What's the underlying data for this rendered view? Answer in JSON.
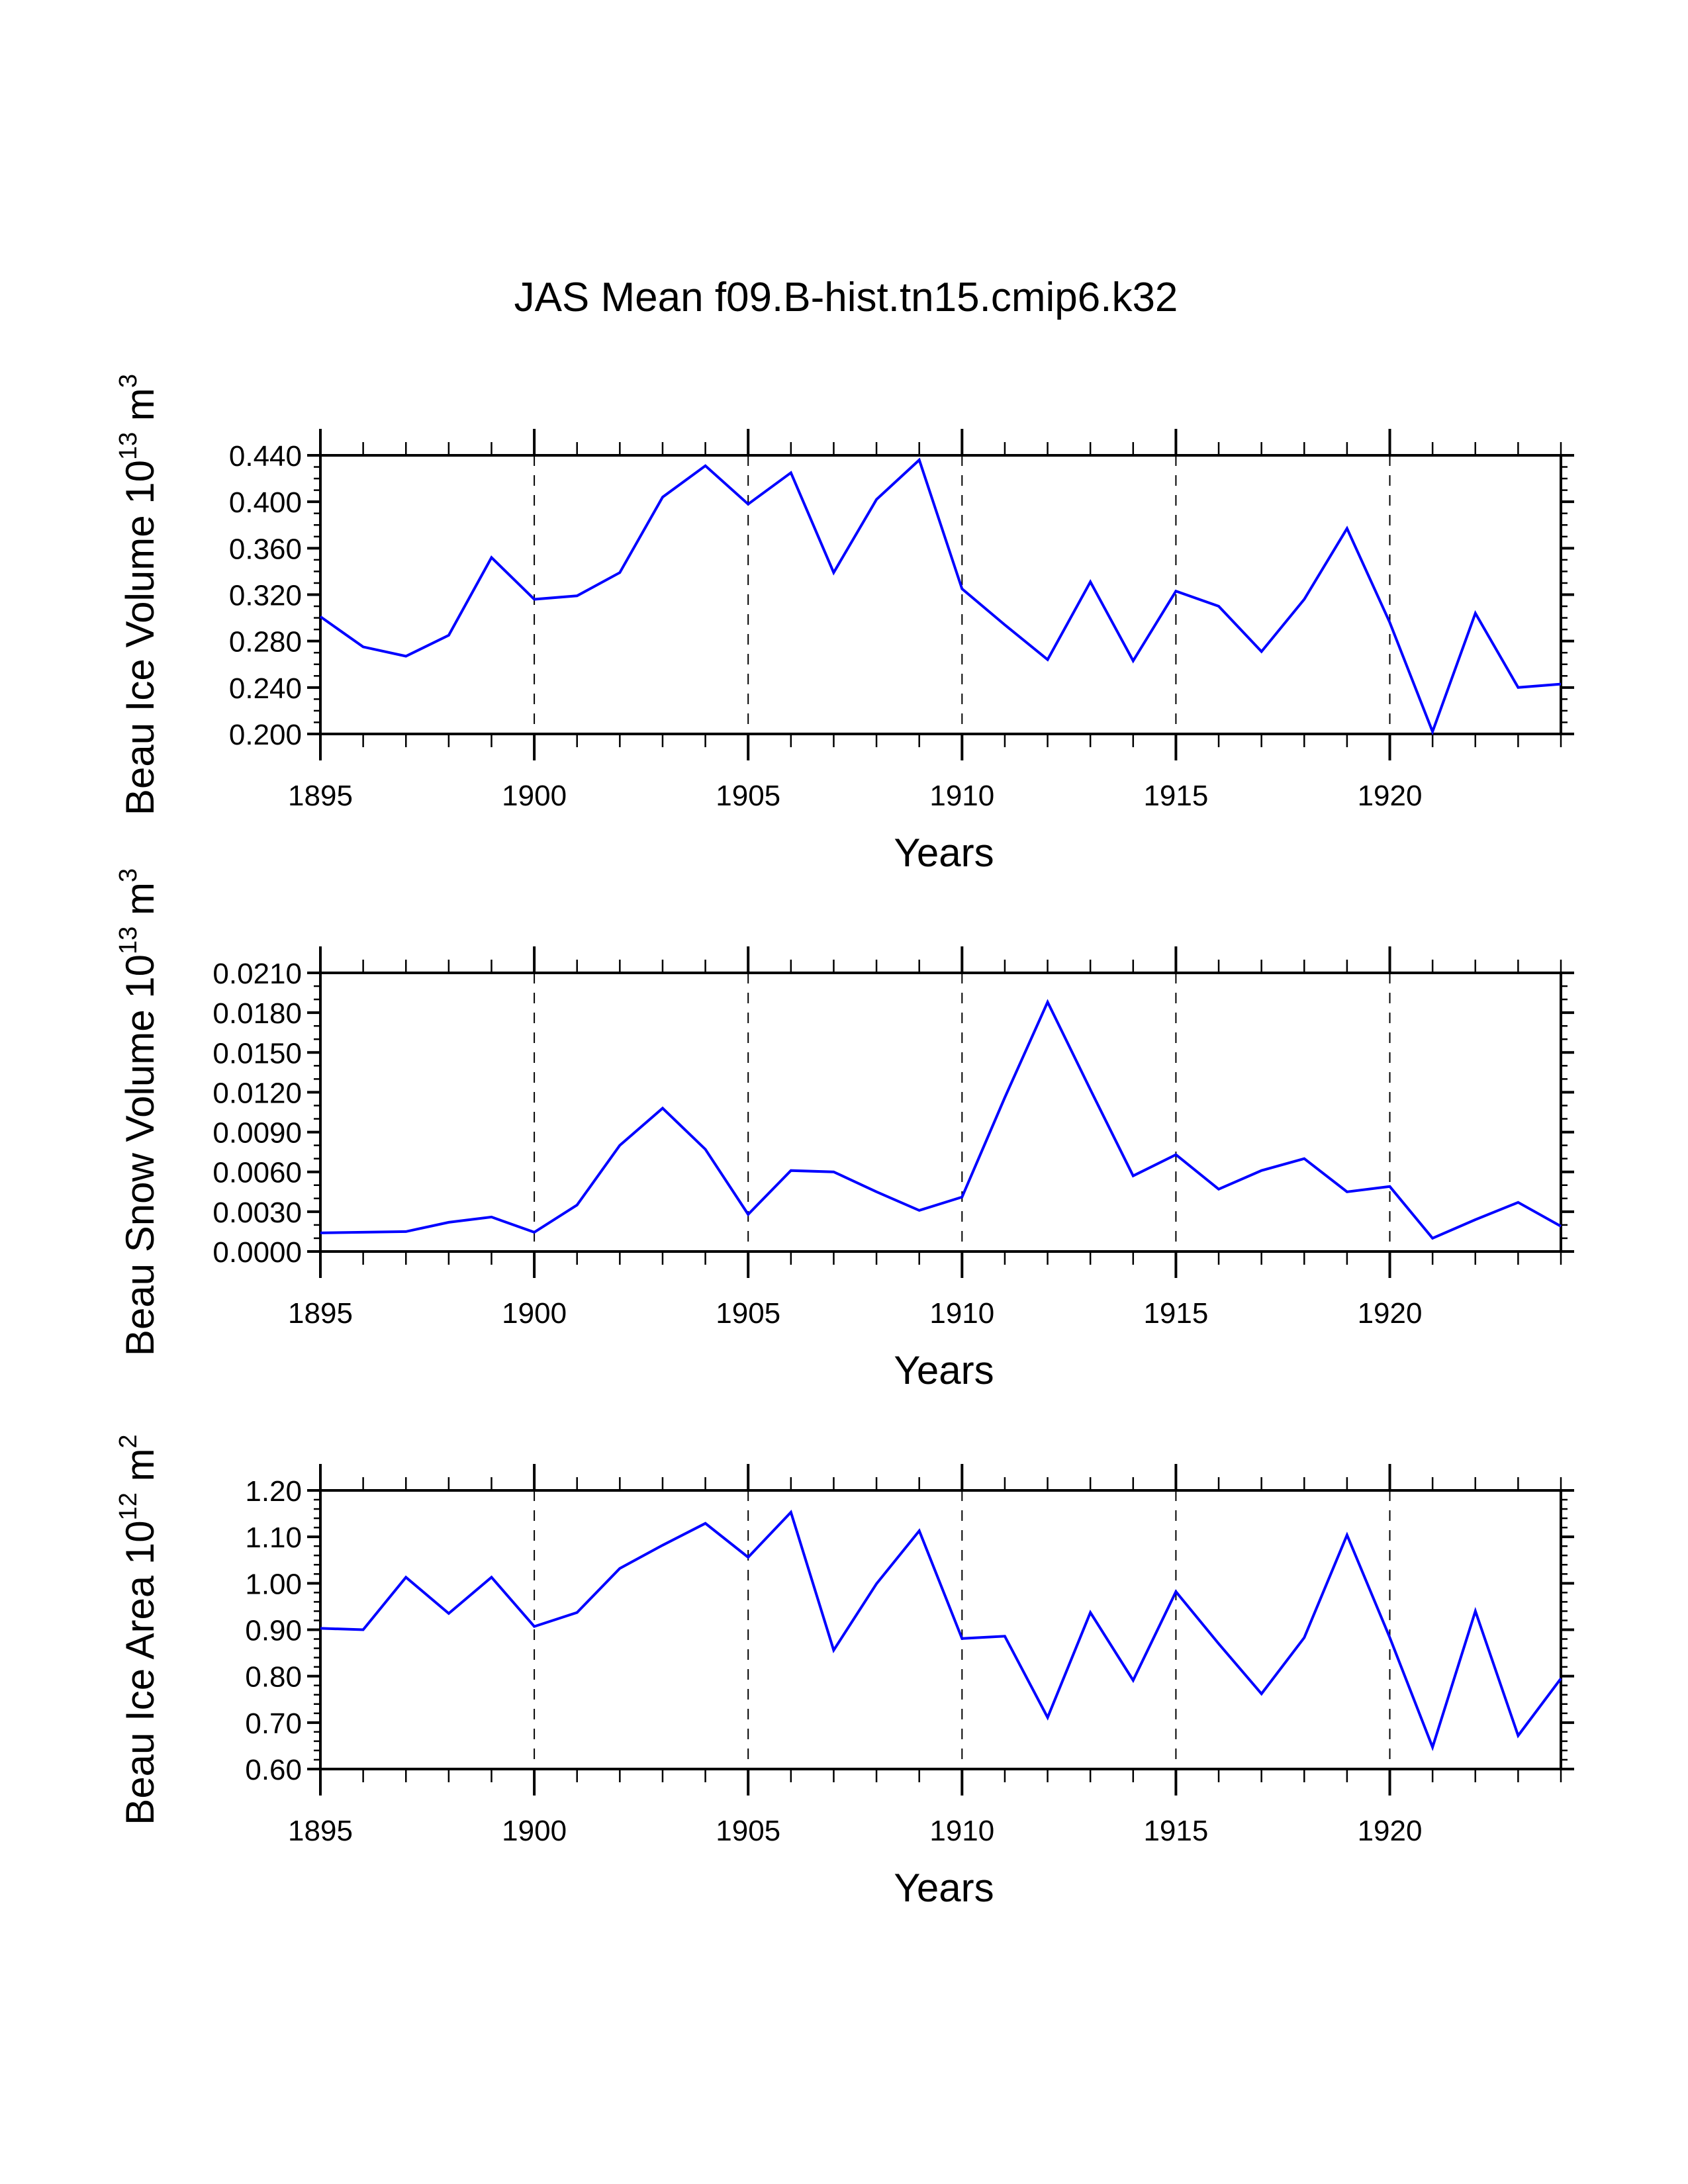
{
  "chart_data": {
    "title": "JAS Mean f09.B-hist.tn15.cmip6.k32",
    "series_color": "#0000ff",
    "panels": [
      {
        "type": "line",
        "name": "beau-ice-volume",
        "ylabel": "Beau Ice Volume 10",
        "ylabel_exp": "13",
        "ylabel_unit": " m",
        "ylabel_unit_exp": "3",
        "xlabel": "Years",
        "xlim": [
          1895,
          1924
        ],
        "ylim": [
          0.2,
          0.44
        ],
        "yticks": [
          0.2,
          0.24,
          0.28,
          0.32,
          0.36,
          0.4,
          0.44
        ],
        "ytick_labels": [
          "0.200",
          "0.240",
          "0.280",
          "0.320",
          "0.360",
          "0.400",
          "0.440"
        ],
        "yminor_per_major": 4,
        "xticks": [
          1895,
          1900,
          1905,
          1910,
          1915,
          1920
        ],
        "xtick_labels": [
          "1895",
          "1900",
          "1905",
          "1910",
          "1915",
          "1920"
        ],
        "grid_x": [
          1900,
          1905,
          1910,
          1915,
          1920
        ],
        "x": [
          1895,
          1896,
          1897,
          1898,
          1899,
          1900,
          1901,
          1902,
          1903,
          1904,
          1905,
          1906,
          1907,
          1908,
          1909,
          1910,
          1911,
          1912,
          1913,
          1914,
          1915,
          1916,
          1917,
          1918,
          1919,
          1920,
          1921,
          1922,
          1923,
          1924
        ],
        "values": [
          0.301,
          0.275,
          0.267,
          0.285,
          0.352,
          0.316,
          0.319,
          0.339,
          0.404,
          0.431,
          0.398,
          0.425,
          0.339,
          0.402,
          0.436,
          0.325,
          0.294,
          0.264,
          0.331,
          0.263,
          0.323,
          0.31,
          0.271,
          0.316,
          0.377,
          0.296,
          0.202,
          0.304,
          0.24,
          0.243
        ]
      },
      {
        "type": "line",
        "name": "beau-snow-volume",
        "ylabel": "Beau Snow Volume 10",
        "ylabel_exp": "13",
        "ylabel_unit": " m",
        "ylabel_unit_exp": "3",
        "xlabel": "Years",
        "xlim": [
          1895,
          1924
        ],
        "ylim": [
          0.0,
          0.021
        ],
        "yticks": [
          0.0,
          0.003,
          0.006,
          0.009,
          0.012,
          0.015,
          0.018,
          0.021
        ],
        "ytick_labels": [
          "0.0000",
          "0.0030",
          "0.0060",
          "0.0090",
          "0.0120",
          "0.0150",
          "0.0180",
          "0.0210"
        ],
        "yminor_per_major": 3,
        "xticks": [
          1895,
          1900,
          1905,
          1910,
          1915,
          1920
        ],
        "xtick_labels": [
          "1895",
          "1900",
          "1905",
          "1910",
          "1915",
          "1920"
        ],
        "grid_x": [
          1900,
          1905,
          1910,
          1915,
          1920
        ],
        "x": [
          1895,
          1896,
          1897,
          1898,
          1899,
          1900,
          1901,
          1902,
          1903,
          1904,
          1905,
          1906,
          1907,
          1908,
          1909,
          1910,
          1911,
          1912,
          1913,
          1914,
          1915,
          1916,
          1917,
          1918,
          1919,
          1920,
          1921,
          1922,
          1923,
          1924
        ],
        "values": [
          0.0014,
          0.00145,
          0.0015,
          0.0022,
          0.0026,
          0.00145,
          0.0035,
          0.008,
          0.0108,
          0.0077,
          0.0028,
          0.0061,
          0.006,
          0.0045,
          0.0031,
          0.0041,
          0.0116,
          0.0188,
          0.0122,
          0.0057,
          0.0073,
          0.0047,
          0.0061,
          0.007,
          0.0045,
          0.0049,
          0.001,
          0.0024,
          0.0037,
          0.0019
        ]
      },
      {
        "type": "line",
        "name": "beau-ice-area",
        "ylabel": "Beau Ice Area 10",
        "ylabel_exp": "12",
        "ylabel_unit": " m",
        "ylabel_unit_exp": "2",
        "xlabel": "Years",
        "xlim": [
          1895,
          1924
        ],
        "ylim": [
          0.6,
          1.2
        ],
        "yticks": [
          0.6,
          0.7,
          0.8,
          0.9,
          1.0,
          1.1,
          1.2
        ],
        "ytick_labels": [
          "0.60",
          "0.70",
          "0.80",
          "0.90",
          "1.00",
          "1.10",
          "1.20"
        ],
        "yminor_per_major": 5,
        "xticks": [
          1895,
          1900,
          1905,
          1910,
          1915,
          1920
        ],
        "xtick_labels": [
          "1895",
          "1900",
          "1905",
          "1910",
          "1915",
          "1920"
        ],
        "grid_x": [
          1900,
          1905,
          1910,
          1915,
          1920
        ],
        "x": [
          1895,
          1896,
          1897,
          1898,
          1899,
          1900,
          1901,
          1902,
          1903,
          1904,
          1905,
          1906,
          1907,
          1908,
          1909,
          1910,
          1911,
          1912,
          1913,
          1914,
          1915,
          1916,
          1917,
          1918,
          1919,
          1920,
          1921,
          1922,
          1923,
          1924
        ],
        "values": [
          0.903,
          0.9,
          1.013,
          0.935,
          1.013,
          0.907,
          0.937,
          1.032,
          1.082,
          1.129,
          1.056,
          1.153,
          0.856,
          0.999,
          1.113,
          0.881,
          0.886,
          0.711,
          0.937,
          0.791,
          0.982,
          0.87,
          0.762,
          0.883,
          1.104,
          0.883,
          0.647,
          0.94,
          0.672,
          0.795
        ]
      }
    ]
  }
}
